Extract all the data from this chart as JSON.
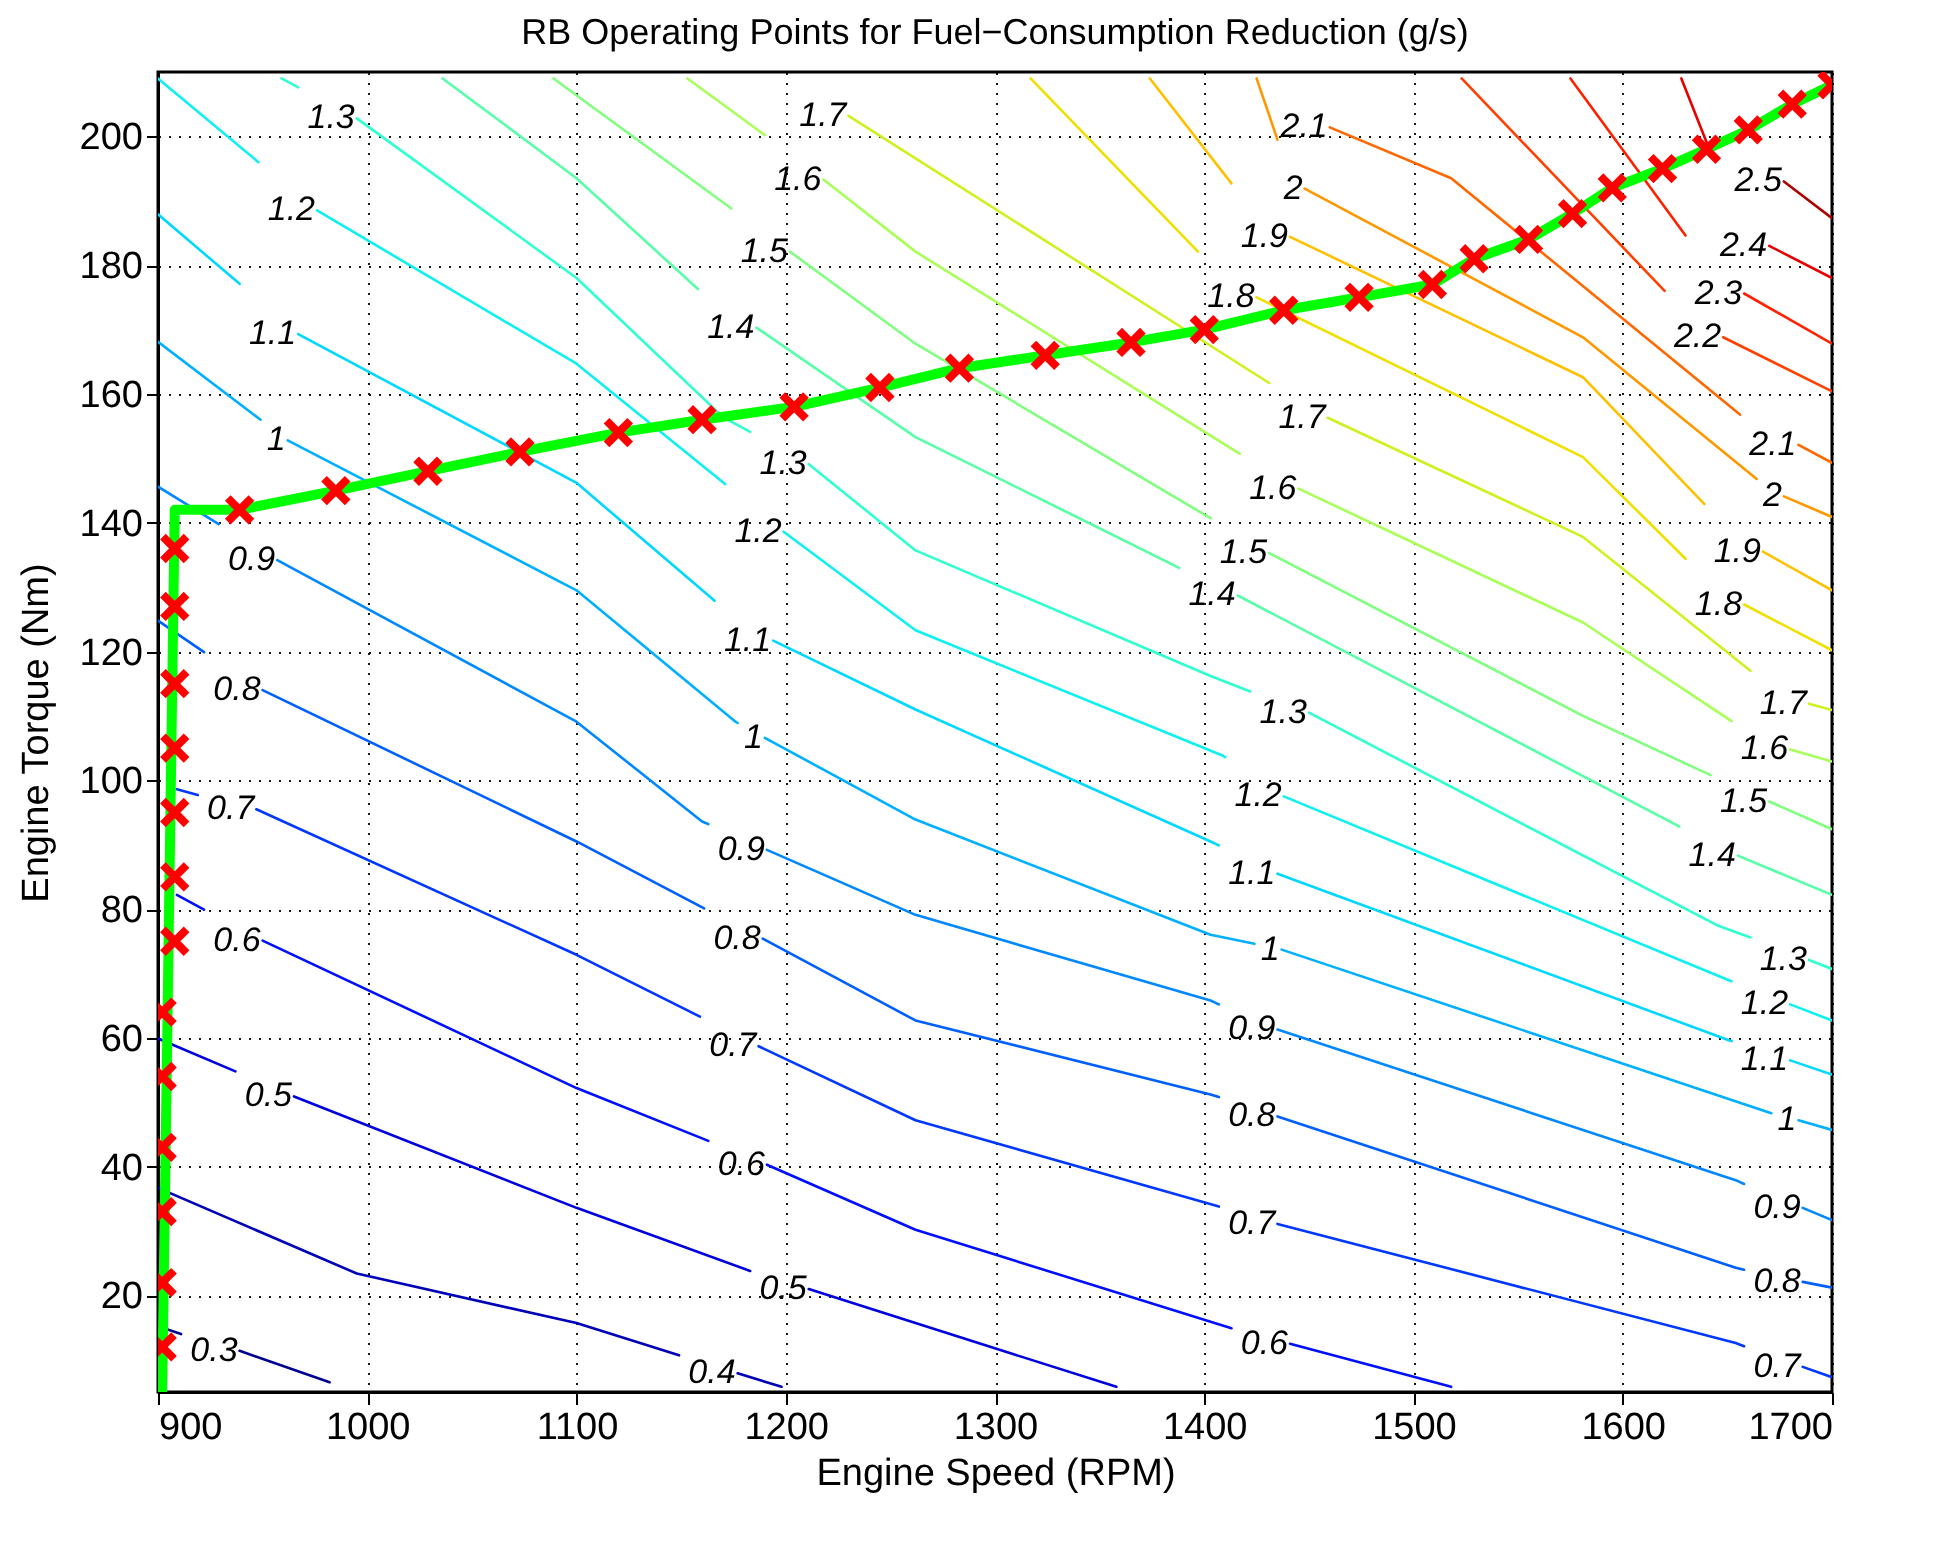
{
  "chart_data": {
    "type": "line",
    "title": "RB Operating Points for Fuel−Consumption Reduction (g/s)",
    "xlabel": "Engine Speed (RPM)",
    "ylabel": "Engine Torque (Nm)",
    "xlim": [
      900,
      1700
    ],
    "xticks": [
      900,
      1000,
      1100,
      1200,
      1300,
      1400,
      1500,
      1600,
      1700
    ],
    "ylim": [
      5,
      210
    ],
    "yticks": [
      20,
      40,
      60,
      80,
      100,
      120,
      140,
      160,
      180,
      200
    ],
    "grid": true,
    "line_style": "solid",
    "series": [
      {
        "color": "#000090",
        "x": [
          902,
          911
        ],
        "values": [
          15.0,
          14.0
        ]
      },
      {
        "name": "0.3",
        "color": "#000090",
        "x": [
          939,
          982
        ],
        "values": [
          11.4,
          6.5
        ]
      },
      {
        "color": "#0000b8",
        "x": [
          900,
          995,
          1100,
          1149
        ],
        "values": [
          36.7,
          23.4,
          15.7,
          10.7
        ]
      },
      {
        "name": "0.4",
        "color": "#0000b8",
        "x": [
          1177,
          1198
        ],
        "values": [
          7.9,
          5.8
        ]
      },
      {
        "color": "#0000df",
        "x": [
          900,
          937
        ],
        "values": [
          59.9,
          54.8
        ]
      },
      {
        "name": "0.5",
        "color": "#0000df",
        "x": [
          965,
          1100,
          1183
        ],
        "values": [
          50.9,
          33.6,
          23.8
        ]
      },
      {
        "name": "0.5",
        "color": "#0000df",
        "x": [
          1211,
          1262,
          1358
        ],
        "values": [
          21.0,
          15.7,
          5.8
        ]
      },
      {
        "color": "#0010ff",
        "x": [
          909,
          922
        ],
        "values": [
          82.2,
          79.9
        ]
      },
      {
        "name": "0.6",
        "color": "#0010ff",
        "x": [
          950,
          1100,
          1163
        ],
        "values": [
          75.1,
          52.2,
          44.0
        ]
      },
      {
        "name": "0.6",
        "color": "#0010ff",
        "x": [
          1191,
          1262,
          1413
        ],
        "values": [
          40.3,
          30.2,
          14.9
        ]
      },
      {
        "name": "0.6",
        "color": "#0010ff",
        "x": [
          1441,
          1518
        ],
        "values": [
          12.5,
          5.8
        ]
      },
      {
        "color": "#0038ff",
        "x": [
          909,
          919
        ],
        "values": [
          98.6,
          97.7
        ]
      },
      {
        "name": "0.7",
        "color": "#0038ff",
        "x": [
          947,
          1100,
          1159
        ],
        "values": [
          95.5,
          72.9,
          63.3
        ]
      },
      {
        "name": "0.7",
        "color": "#0038ff",
        "x": [
          1187,
          1262,
          1407
        ],
        "values": [
          58.7,
          47.2,
          33.8
        ]
      },
      {
        "name": "0.7",
        "color": "#0038ff",
        "x": [
          1435,
          1654,
          1658
        ],
        "values": [
          31.1,
          12.6,
          12.1
        ]
      },
      {
        "name": "0.7",
        "color": "#0038ff",
        "x": [
          1686,
          1700
        ],
        "values": [
          8.9,
          7.3
        ]
      },
      {
        "color": "#0060ff",
        "x": [
          900,
          922
        ],
        "values": [
          124.8,
          119.9
        ]
      },
      {
        "name": "0.8",
        "color": "#0060ff",
        "x": [
          950,
          1100,
          1161
        ],
        "values": [
          114.0,
          90.5,
          80.1
        ]
      },
      {
        "name": "0.8",
        "color": "#0060ff",
        "x": [
          1189,
          1262,
          1403,
          1407
        ],
        "values": [
          75.4,
          62.7,
          51.2,
          50.8
        ]
      },
      {
        "name": "0.8",
        "color": "#0060ff",
        "x": [
          1435,
          1654,
          1658
        ],
        "values": [
          47.8,
          24.3,
          24.0
        ]
      },
      {
        "name": "0.8",
        "color": "#0060ff",
        "x": [
          1686,
          1700
        ],
        "values": [
          22.1,
          21.2
        ]
      },
      {
        "color": "#0088ff",
        "x": [
          900,
          929
        ],
        "values": [
          145.6,
          139.8
        ]
      },
      {
        "name": "0.9",
        "color": "#0088ff",
        "x": [
          957,
          1100,
          1160,
          1163
        ],
        "values": [
          134.2,
          109.1,
          93.6,
          93.2
        ]
      },
      {
        "name": "0.9",
        "color": "#0088ff",
        "x": [
          1191,
          1262,
          1403,
          1407
        ],
        "values": [
          89.2,
          79.1,
          65.8,
          65.2
        ]
      },
      {
        "name": "0.9",
        "color": "#0088ff",
        "x": [
          1435,
          1654,
          1658
        ],
        "values": [
          61.3,
          37.9,
          37.3
        ]
      },
      {
        "name": "0.9",
        "color": "#0088ff",
        "x": [
          1686,
          1700
        ],
        "values": [
          33.6,
          31.7
        ]
      },
      {
        "color": "#00b0ff",
        "x": [
          900,
          949
        ],
        "values": [
          168.1,
          156.0
        ]
      },
      {
        "name": "1",
        "color": "#00b0ff",
        "x": [
          962,
          1100,
          1176,
          1177
        ],
        "values": [
          152.8,
          129.5,
          109.1,
          108.9
        ]
      },
      {
        "name": "1",
        "color": "#00b0ff",
        "x": [
          1190,
          1262,
          1403,
          1424
        ],
        "values": [
          106.6,
          93.9,
          76.0,
          74.6
        ]
      },
      {
        "name": "1",
        "color": "#00b0ff",
        "x": [
          1437,
          1671
        ],
        "values": [
          73.7,
          48.3
        ]
      },
      {
        "name": "1",
        "color": "#00b0ff",
        "x": [
          1684,
          1700
        ],
        "values": [
          47.2,
          45.7
        ]
      },
      {
        "color": "#00d8ff",
        "x": [
          900,
          939
        ],
        "values": [
          187.9,
          177.1
        ]
      },
      {
        "name": "1.1",
        "color": "#00d8ff",
        "x": [
          967,
          1100,
          1166
        ],
        "values": [
          169.3,
          146.2,
          127.9
        ]
      },
      {
        "name": "1.1",
        "color": "#00d8ff",
        "x": [
          1194,
          1262,
          1403,
          1407
        ],
        "values": [
          121.7,
          111.0,
          90.5,
          89.9
        ]
      },
      {
        "name": "1.1",
        "color": "#00d8ff",
        "x": [
          1435,
          1651,
          1652
        ],
        "values": [
          85.5,
          59.6,
          59.5
        ]
      },
      {
        "name": "1.1",
        "color": "#00d8ff",
        "x": [
          1680,
          1700
        ],
        "values": [
          56.5,
          54.3
        ]
      },
      {
        "color": "#10f0f0",
        "x": [
          900,
          948
        ],
        "values": [
          209,
          196.0
        ]
      },
      {
        "name": "1.2",
        "color": "#10f0f0",
        "x": [
          976,
          1100,
          1171
        ],
        "values": [
          188.5,
          164.7,
          146.0
        ]
      },
      {
        "name": "1.2",
        "color": "#10f0f0",
        "x": [
          1199,
          1262,
          1409,
          1410
        ],
        "values": [
          138.6,
          123.3,
          103.8,
          103.6
        ]
      },
      {
        "name": "1.2",
        "color": "#10f0f0",
        "x": [
          1438,
          1651,
          1652
        ],
        "values": [
          97.5,
          68.9,
          68.8
        ]
      },
      {
        "name": "1.2",
        "color": "#10f0f0",
        "x": [
          1680,
          1700
        ],
        "values": [
          65.2,
          62.7
        ]
      },
      {
        "color": "#30ffd0",
        "x": [
          959,
          967
        ],
        "values": [
          209,
          207.6
        ]
      },
      {
        "name": "1.3",
        "color": "#30ffd0",
        "x": [
          995,
          1100,
          1170,
          1183
        ],
        "values": [
          202.8,
          178.0,
          156.4,
          154.1
        ]
      },
      {
        "name": "1.3",
        "color": "#30ffd0",
        "x": [
          1211,
          1262,
          1403,
          1422
        ],
        "values": [
          149.1,
          135.7,
          116.2,
          113.8
        ]
      },
      {
        "name": "1.3",
        "color": "#30ffd0",
        "x": [
          1450,
          1645,
          1661
        ],
        "values": [
          110.5,
          77.5,
          75.6
        ]
      },
      {
        "name": "1.3",
        "color": "#30ffd0",
        "x": [
          1689,
          1700
        ],
        "values": [
          72.1,
          70.7
        ]
      },
      {
        "color": "#58ffa8",
        "x": [
          1036,
          1100,
          1158
        ],
        "values": [
          209,
          193.5,
          176.3
        ]
      },
      {
        "name": "1.4",
        "color": "#58ffa8",
        "x": [
          1186,
          1262,
          1388
        ],
        "values": [
          170.3,
          153.3,
          133.0
        ]
      },
      {
        "name": "1.4",
        "color": "#58ffa8",
        "x": [
          1416,
          1626,
          1627
        ],
        "values": [
          128.7,
          93.0,
          92.8
        ]
      },
      {
        "name": "1.4",
        "color": "#58ffa8",
        "x": [
          1655,
          1700
        ],
        "values": [
          88.3,
          82.2
        ]
      },
      {
        "color": "#80ff80",
        "x": [
          1089,
          1174
        ],
        "values": [
          209,
          188.8
        ]
      },
      {
        "name": "1.5",
        "color": "#80ff80",
        "x": [
          1202,
          1262,
          1403
        ],
        "values": [
          182.1,
          167.8,
          140.7
        ]
      },
      {
        "name": "1.5",
        "color": "#80ff80",
        "x": [
          1431,
          1581,
          1642
        ],
        "values": [
          135.3,
          110.0,
          100.8
        ]
      },
      {
        "name": "1.5",
        "color": "#80ff80",
        "x": [
          1670,
          1700
        ],
        "values": [
          96.7,
          92.4
        ]
      },
      {
        "color": "#a8ff58",
        "x": [
          1153,
          1190
        ],
        "values": [
          209,
          200.2
        ]
      },
      {
        "name": "1.6",
        "color": "#a8ff58",
        "x": [
          1218,
          1262,
          1417
        ],
        "values": [
          193.3,
          182.1,
          150.7
        ]
      },
      {
        "name": "1.6",
        "color": "#a8ff58",
        "x": [
          1445,
          1581,
          1652
        ],
        "values": [
          145.3,
          124.5,
          109.2
        ]
      },
      {
        "name": "1.6",
        "color": "#a8ff58",
        "x": [
          1680,
          1700
        ],
        "values": [
          104.8,
          102.9
        ]
      },
      {
        "name": "1.7",
        "color": "#d0f020",
        "x": [
          1230,
          1262,
          1431
        ],
        "values": [
          203.2,
          196.6,
          161.7
        ]
      },
      {
        "name": "1.7",
        "color": "#d0f020",
        "x": [
          1459,
          1581,
          1661
        ],
        "values": [
          156.3,
          137.8,
          117.0
        ]
      },
      {
        "name": "1.7",
        "color": "#d0f020",
        "x": [
          1689,
          1700
        ],
        "values": [
          111.9,
          110.9
        ]
      },
      {
        "color": "#f0e000",
        "x": [
          1317,
          1397
        ],
        "values": [
          209,
          182.1
        ]
      },
      {
        "name": "1.8",
        "color": "#f0e000",
        "x": [
          1425,
          1581,
          1630
        ],
        "values": [
          175.0,
          150.2,
          134.4
        ]
      },
      {
        "name": "1.8",
        "color": "#f0e000",
        "x": [
          1658,
          1700
        ],
        "values": [
          127.3,
          120.2
        ]
      },
      {
        "color": "#ffc000",
        "x": [
          1374,
          1413
        ],
        "values": [
          209,
          192.7
        ]
      },
      {
        "name": "1.9",
        "color": "#ffc000",
        "x": [
          1441,
          1581,
          1639
        ],
        "values": [
          184.4,
          162.6,
          142.9
        ]
      },
      {
        "name": "1.9",
        "color": "#ffc000",
        "x": [
          1667,
          1700
        ],
        "values": [
          135.5,
          129.5
        ]
      },
      {
        "color": "#ff9800",
        "x": [
          1425,
          1435
        ],
        "values": [
          209,
          199.5
        ]
      },
      {
        "name": "2",
        "color": "#ff9800",
        "x": [
          1448,
          1581,
          1664
        ],
        "values": [
          191.9,
          168.8,
          146.8
        ]
      },
      {
        "name": "2",
        "color": "#ff9800",
        "x": [
          1677,
          1700
        ],
        "values": [
          144.1,
          140.9
        ]
      },
      {
        "name": "2.1",
        "color": "#ff6800",
        "x": [
          1460,
          1518,
          1656
        ],
        "values": [
          201.4,
          193.5,
          156.8
        ]
      },
      {
        "name": "2.1",
        "color": "#ff6800",
        "x": [
          1684,
          1700
        ],
        "values": [
          152.1,
          149.3
        ]
      },
      {
        "color": "#ff4000",
        "x": [
          1523,
          1620
        ],
        "values": [
          209,
          176.0
        ]
      },
      {
        "name": "2.2",
        "color": "#ff4000",
        "x": [
          1648,
          1700
        ],
        "values": [
          168.8,
          160.4
        ]
      },
      {
        "color": "#ff2000",
        "x": [
          1575,
          1630
        ],
        "values": [
          209,
          184.6
        ]
      },
      {
        "name": "2.3",
        "color": "#ff2000",
        "x": [
          1658,
          1700
        ],
        "values": [
          175.6,
          167.8
        ]
      },
      {
        "color": "#e80000",
        "x": [
          1628,
          1642
        ],
        "values": [
          209,
          197.5
        ]
      },
      {
        "name": "2.4",
        "color": "#e80000",
        "x": [
          1670,
          1700
        ],
        "values": [
          183.0,
          178.0
        ]
      },
      {
        "name": "2.5",
        "color": "#b00000",
        "x": [
          1677,
          1700
        ],
        "values": [
          193.0,
          187.3
        ]
      },
      {
        "type": "line",
        "color": "#00ff00",
        "x": [
          902,
          908,
          939,
          985,
          1029,
          1073,
          1120,
          1160,
          1204,
          1245,
          1283,
          1324,
          1365,
          1400,
          1438,
          1474,
          1509,
          1529,
          1555,
          1576,
          1595,
          1619,
          1640,
          1660,
          1681,
          1700
        ],
        "values": [
          5,
          142,
          142,
          145,
          148,
          151,
          154,
          156,
          158,
          161,
          164,
          166,
          168,
          170,
          173,
          175,
          177,
          181,
          184,
          188,
          192,
          195,
          198,
          201,
          205,
          208
        ]
      },
      {
        "type": "scatter",
        "marker": "cross",
        "color": "#ff0000",
        "x": [
          902,
          902,
          902,
          902,
          902,
          902,
          908,
          908,
          908,
          908,
          908,
          908,
          908,
          939,
          985,
          1029,
          1073,
          1120,
          1160,
          1204,
          1245,
          1283,
          1324,
          1365,
          1400,
          1438,
          1474,
          1509,
          1529,
          1555,
          1576,
          1595,
          1619,
          1640,
          1660,
          1681,
          1700
        ],
        "values": [
          12,
          22,
          33,
          43,
          54,
          64,
          75,
          85,
          95,
          105,
          115,
          127,
          136,
          142,
          145,
          148,
          151,
          154,
          156,
          158,
          161,
          164,
          166,
          168,
          170,
          173,
          175,
          177,
          181,
          184,
          188,
          192,
          195,
          198,
          201,
          205,
          208
        ]
      }
    ]
  }
}
